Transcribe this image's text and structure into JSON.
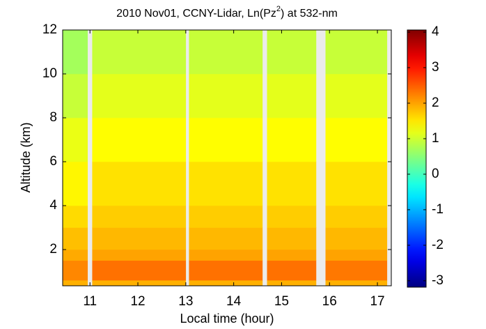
{
  "chart_data": {
    "type": "heatmap",
    "title_parts": [
      "2010 Nov01, CCNY-Lidar, Ln(Pz",
      "2",
      ") at 532-nm"
    ],
    "xlabel": "Local time (hour)",
    "ylabel": "Altitude (km)",
    "colormap": "jet",
    "xlim": [
      10.43,
      17.29
    ],
    "xticks": [
      11,
      12,
      13,
      14,
      15,
      16,
      17
    ],
    "ylim": [
      0.35,
      12
    ],
    "yticks": [
      2,
      4,
      6,
      8,
      10,
      12
    ],
    "clim": [
      -3.18,
      4.06
    ],
    "cticks": [
      -3,
      -2,
      -1,
      0,
      1,
      2,
      3,
      4
    ],
    "x_segments": [
      [
        10.43,
        10.95
      ],
      [
        11.05,
        13.0
      ],
      [
        13.07,
        14.6
      ],
      [
        14.7,
        15.72
      ],
      [
        15.92,
        17.2
      ]
    ],
    "y_bins": [
      0.35,
      0.6,
      1.5,
      2,
      3,
      4,
      6,
      8,
      10,
      12
    ],
    "values": [
      [
        1.9,
        2.2,
        1.95,
        1.8,
        1.6,
        1.4,
        1.2,
        0.95,
        0.7
      ],
      [
        1.9,
        2.35,
        2.0,
        1.85,
        1.7,
        1.55,
        1.35,
        1.15,
        0.95
      ],
      [
        1.9,
        2.35,
        2.0,
        1.85,
        1.7,
        1.55,
        1.35,
        1.15,
        0.95
      ],
      [
        1.9,
        2.35,
        2.0,
        1.85,
        1.7,
        1.55,
        1.35,
        1.15,
        0.95
      ],
      [
        1.9,
        2.3,
        2.0,
        1.85,
        1.7,
        1.55,
        1.35,
        1.15,
        0.95
      ]
    ]
  }
}
